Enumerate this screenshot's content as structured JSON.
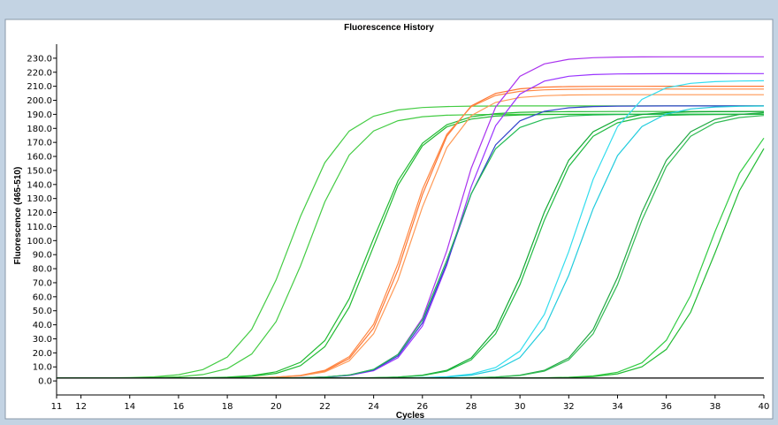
{
  "chart_data": {
    "type": "line",
    "title": "Fluorescence History",
    "xlabel": "Cycles",
    "ylabel": "Fluorescence (465-510)",
    "xlim": [
      11,
      40
    ],
    "ylim": [
      -10,
      240
    ],
    "x_ticks": [
      11,
      12,
      14,
      16,
      18,
      20,
      22,
      24,
      26,
      28,
      30,
      32,
      34,
      36,
      38,
      40
    ],
    "y_ticks": [
      0,
      10,
      20,
      30,
      40,
      50,
      60,
      70,
      80,
      90,
      100,
      110,
      120,
      130,
      140,
      150,
      160,
      170,
      180,
      190,
      200,
      210,
      220,
      230
    ],
    "y_tick_labels": [
      "0.0",
      "10.0",
      "20.0",
      "30.0",
      "40.0",
      "50.0",
      "60.0",
      "70.0",
      "80.0",
      "90.0",
      "100.0",
      "110.0",
      "120.0",
      "130.0",
      "140.0",
      "150.0",
      "160.0",
      "170.0",
      "180.0",
      "190.0",
      "200.0",
      "210.0",
      "220.0",
      "230.0"
    ],
    "grid": false,
    "legend": "none",
    "series": [
      {
        "color": "#44cc44",
        "plateau": 196,
        "midpoint": 20.6,
        "slope": 1.05
      },
      {
        "color": "#44cc44",
        "plateau": 190,
        "midpoint": 21.3,
        "slope": 1.0
      },
      {
        "color": "#22bb33",
        "plateau": 192,
        "midpoint": 23.9,
        "slope": 1.05
      },
      {
        "color": "#22bb33",
        "plateau": 190,
        "midpoint": 24.0,
        "slope": 1.0
      },
      {
        "color": "#ff7733",
        "plateau": 210,
        "midpoint": 25.5,
        "slope": 0.95
      },
      {
        "color": "#ff9955",
        "plateau": 204,
        "midpoint": 25.6,
        "slope": 0.95
      },
      {
        "color": "#ff8844",
        "plateau": 208,
        "midpoint": 25.4,
        "slope": 0.95
      },
      {
        "color": "#aa33ee",
        "plateau": 231,
        "midpoint": 27.4,
        "slope": 0.95
      },
      {
        "color": "#9933ff",
        "plateau": 219,
        "midpoint": 27.5,
        "slope": 0.95
      },
      {
        "color": "#3344cc",
        "plateau": 196,
        "midpoint": 27.3,
        "slope": 0.95
      },
      {
        "color": "#22bb55",
        "plateau": 190,
        "midpoint": 27.2,
        "slope": 0.95
      },
      {
        "color": "#11aa33",
        "plateau": 192,
        "midpoint": 30.5,
        "slope": 1.0
      },
      {
        "color": "#22bb44",
        "plateau": 190,
        "midpoint": 30.6,
        "slope": 1.0
      },
      {
        "color": "#33ddee",
        "plateau": 214,
        "midpoint": 32.3,
        "slope": 1.0
      },
      {
        "color": "#22ccdd",
        "plateau": 196,
        "midpoint": 32.5,
        "slope": 1.0
      },
      {
        "color": "#22aa44",
        "plateau": 192,
        "midpoint": 34.5,
        "slope": 1.0
      },
      {
        "color": "#33bb55",
        "plateau": 190,
        "midpoint": 34.6,
        "slope": 1.0
      },
      {
        "color": "#33cc44",
        "plateau": 192,
        "midpoint": 37.8,
        "slope": 1.0
      },
      {
        "color": "#22bb33",
        "plateau": 190,
        "midpoint": 38.1,
        "slope": 1.0
      },
      {
        "color": "#000000",
        "plateau": 1,
        "midpoint": 100,
        "slope": 1.0
      }
    ]
  }
}
